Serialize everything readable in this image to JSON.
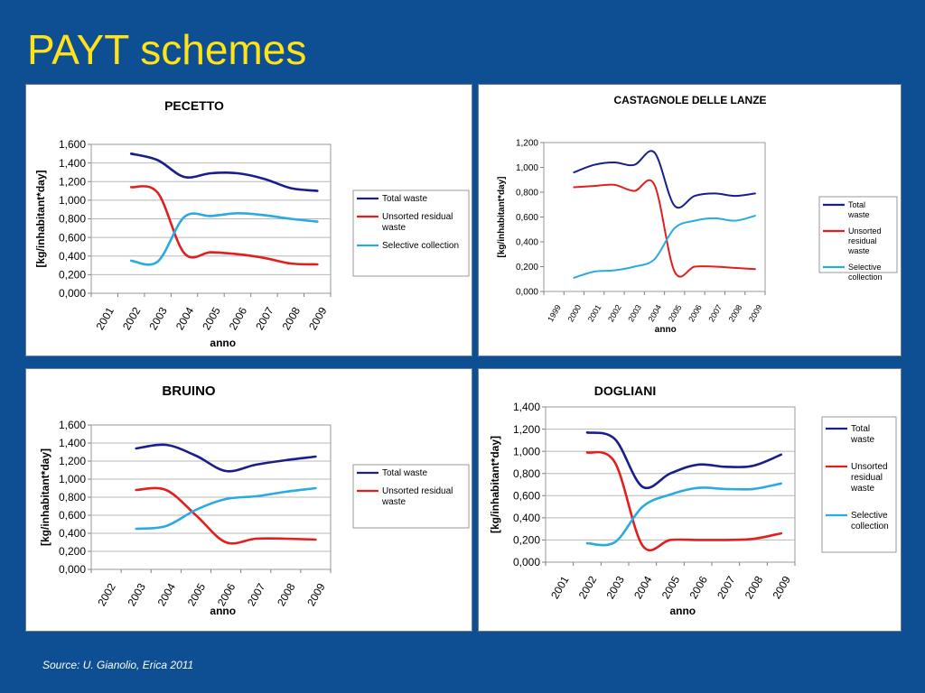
{
  "slide": {
    "title": "PAYT schemes",
    "source": "Source: U. Gianolio, Erica 2011"
  },
  "colors": {
    "background": "#0e4f93",
    "title": "#ffe21a",
    "total": "#1a1e8c",
    "unsorted": "#e21e1e",
    "selective": "#29abe2"
  },
  "chart_data": [
    {
      "type": "line",
      "title": "PECETTO",
      "xlabel": "anno",
      "ylabel": "[kg/inhabitant*day]",
      "categories": [
        "2001",
        "2002",
        "2003",
        "2004",
        "2005",
        "2006",
        "2007",
        "2008",
        "2009"
      ],
      "ylim": [
        0,
        1.6
      ],
      "yticks": [
        "0,000",
        "0,200",
        "0,400",
        "0,600",
        "0,800",
        "1,000",
        "1,200",
        "1,400",
        "1,600"
      ],
      "legend_position": "right",
      "grid": true,
      "series": [
        {
          "name": "Total waste",
          "color": "#1a1e8c",
          "values": [
            null,
            1.5,
            1.43,
            1.25,
            1.29,
            1.29,
            1.23,
            1.13,
            1.1
          ]
        },
        {
          "name": "Unsorted residual waste",
          "color": "#e21e1e",
          "values": [
            null,
            1.14,
            1.08,
            0.43,
            0.44,
            0.42,
            0.38,
            0.32,
            0.31
          ]
        },
        {
          "name": "Selective collection",
          "color": "#29abe2",
          "values": [
            null,
            0.35,
            0.34,
            0.82,
            0.83,
            0.86,
            0.84,
            0.8,
            0.77
          ]
        }
      ]
    },
    {
      "type": "line",
      "title": "CASTAGNOLE DELLE LANZE",
      "xlabel": "anno",
      "ylabel": "[kg/inhabitant*day]",
      "categories": [
        "1999",
        "2000",
        "2001",
        "2002",
        "2003",
        "2004",
        "2005",
        "2006",
        "2007",
        "2008",
        "2009"
      ],
      "ylim": [
        0,
        1.2
      ],
      "yticks": [
        "0,000",
        "0,200",
        "0,400",
        "0,600",
        "0,800",
        "1,000",
        "1,200"
      ],
      "legend_position": "right",
      "grid": false,
      "series": [
        {
          "name": "Total waste",
          "color": "#1a1e8c",
          "values": [
            null,
            0.96,
            1.02,
            1.04,
            1.02,
            1.12,
            0.69,
            0.77,
            0.79,
            0.77,
            0.79
          ]
        },
        {
          "name": "Unsorted residual waste",
          "color": "#e21e1e",
          "values": [
            null,
            0.84,
            0.85,
            0.86,
            0.81,
            0.86,
            0.16,
            0.2,
            0.2,
            0.19,
            0.18
          ]
        },
        {
          "name": "Selective collection",
          "color": "#29abe2",
          "values": [
            null,
            0.11,
            0.16,
            0.17,
            0.2,
            0.26,
            0.51,
            0.57,
            0.59,
            0.57,
            0.61
          ]
        }
      ]
    },
    {
      "type": "line",
      "title": "BRUINO",
      "xlabel": "anno",
      "ylabel": "[kg/inhabitant*day]",
      "categories": [
        "2002",
        "2003",
        "2004",
        "2005",
        "2006",
        "2007",
        "2008",
        "2009"
      ],
      "ylim": [
        0,
        1.6
      ],
      "yticks": [
        "0,000",
        "0,200",
        "0,400",
        "0,600",
        "0,800",
        "1,000",
        "1,200",
        "1,400",
        "1,600"
      ],
      "legend_position": "right",
      "grid": true,
      "series": [
        {
          "name": "Total waste",
          "color": "#1a1e8c",
          "values": [
            null,
            1.34,
            1.38,
            1.26,
            1.09,
            1.16,
            1.21,
            1.25
          ]
        },
        {
          "name": "Unsorted residual waste",
          "color": "#e21e1e",
          "values": [
            null,
            0.88,
            0.88,
            0.6,
            0.3,
            0.34,
            0.34,
            0.33
          ]
        },
        {
          "name": "",
          "color": "#29abe2",
          "values": [
            null,
            0.45,
            0.48,
            0.66,
            0.78,
            0.81,
            0.86,
            0.9
          ]
        }
      ]
    },
    {
      "type": "line",
      "title": "DOGLIANI",
      "xlabel": "anno",
      "ylabel": "[kg/inhabitant*day]",
      "categories": [
        "2001",
        "2002",
        "2003",
        "2004",
        "2005",
        "2006",
        "2007",
        "2008",
        "2009"
      ],
      "ylim": [
        0,
        1.4
      ],
      "yticks": [
        "0,000",
        "0,200",
        "0,400",
        "0,600",
        "0,800",
        "1,000",
        "1,200",
        "1,400"
      ],
      "legend_position": "right",
      "grid": true,
      "series": [
        {
          "name": "Total waste",
          "color": "#1a1e8c",
          "values": [
            null,
            1.17,
            1.11,
            0.68,
            0.8,
            0.88,
            0.86,
            0.87,
            0.97
          ]
        },
        {
          "name": "Unsorted residual waste",
          "color": "#e21e1e",
          "values": [
            null,
            0.99,
            0.9,
            0.15,
            0.2,
            0.2,
            0.2,
            0.21,
            0.26
          ]
        },
        {
          "name": "Selective collection",
          "color": "#29abe2",
          "values": [
            null,
            0.17,
            0.18,
            0.5,
            0.61,
            0.67,
            0.66,
            0.66,
            0.71
          ]
        }
      ]
    }
  ]
}
